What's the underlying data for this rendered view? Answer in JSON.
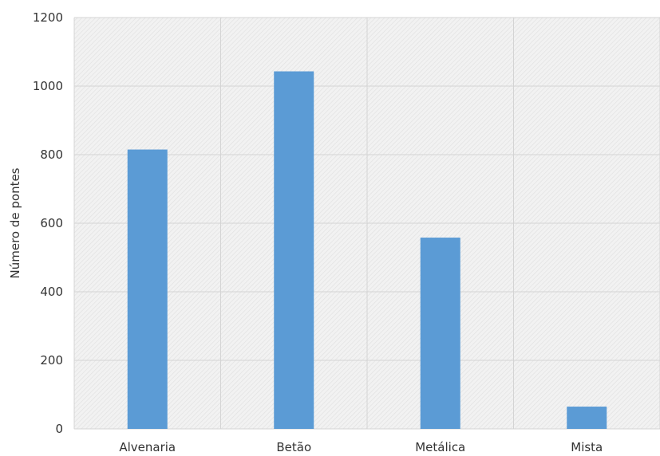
{
  "chart_data": {
    "type": "bar",
    "title": "",
    "xlabel": "",
    "ylabel": "Número de pontes",
    "categories": [
      "Alvenaria",
      "Betão",
      "Metálica",
      "Mista"
    ],
    "values": [
      815,
      1043,
      558,
      65
    ],
    "ylim": [
      0,
      1200
    ],
    "yticks": [
      0,
      200,
      400,
      600,
      800,
      1000,
      1200
    ],
    "grid": true,
    "legend": "none",
    "bar_color": "#5b9bd5",
    "plot_background": "#f0f0f0",
    "grid_color": "#d4d4d4"
  }
}
